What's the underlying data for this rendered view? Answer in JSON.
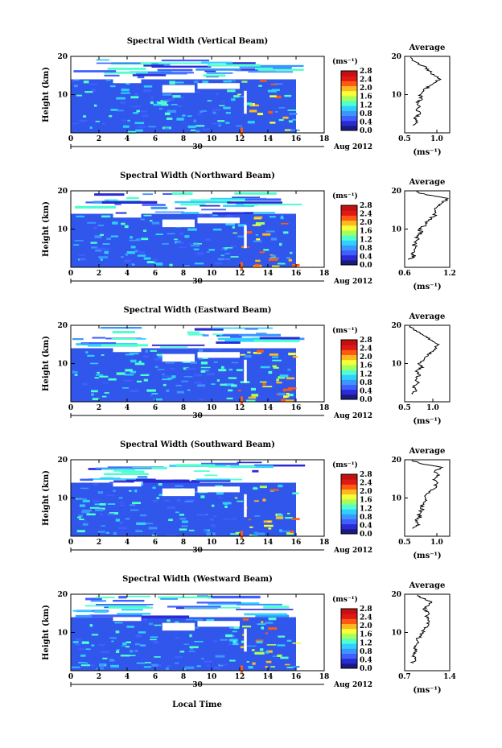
{
  "figure": {
    "x_label": "Local Time",
    "date_label": "Aug 2012",
    "day_label": "30",
    "avg_title": "Average",
    "unit_label": "(ms⁻¹)",
    "y_label": "Height (km)"
  },
  "colorbar": {
    "ticks": [
      "0.0",
      "0.4",
      "0.8",
      "1.2",
      "1.6",
      "2.0",
      "2.4",
      "2.8"
    ],
    "colors": [
      "#1a1a80",
      "#2a2ad6",
      "#3f5fff",
      "#3b97ff",
      "#2fd0ff",
      "#4fffd0",
      "#a8ff5a",
      "#f5ff3a",
      "#ffb820",
      "#ff5a10",
      "#e01818",
      "#c41010"
    ]
  },
  "chart_data": [
    {
      "type": "heatmap",
      "title": "Spectral Width (Vertical Beam)",
      "x_ticks": [
        "0",
        "2",
        "4",
        "6",
        "8",
        "10",
        "12",
        "14",
        "16",
        "18"
      ],
      "xlim": [
        0,
        18
      ],
      "ylim": [
        0,
        20
      ],
      "y_ticks": [
        "10",
        "20"
      ],
      "avg": {
        "xlim": [
          0.5,
          1.2
        ],
        "x_ticks": [
          "0.5",
          "1.0"
        ],
        "profile": [
          [
            2,
            0.62
          ],
          [
            3,
            0.7
          ],
          [
            4,
            0.66
          ],
          [
            5,
            0.74
          ],
          [
            6,
            0.68
          ],
          [
            7,
            0.72
          ],
          [
            8,
            0.7
          ],
          [
            9,
            0.76
          ],
          [
            10,
            0.74
          ],
          [
            11,
            0.8
          ],
          [
            12,
            0.86
          ],
          [
            13,
            0.95
          ],
          [
            14,
            1.05
          ],
          [
            15,
            0.96
          ],
          [
            16,
            0.9
          ],
          [
            17,
            0.84
          ],
          [
            18,
            0.72
          ],
          [
            19,
            0.62
          ],
          [
            20,
            0.58
          ]
        ]
      }
    },
    {
      "type": "heatmap",
      "title": "Spectral Width (Northward Beam)",
      "x_ticks": [
        "0",
        "2",
        "4",
        "6",
        "8",
        "10",
        "12",
        "14",
        "16",
        "18"
      ],
      "xlim": [
        0,
        18
      ],
      "ylim": [
        0,
        20
      ],
      "y_ticks": [
        "10",
        "20"
      ],
      "avg": {
        "xlim": [
          0.6,
          1.2
        ],
        "x_ticks": [
          "0.6",
          "1.2"
        ],
        "profile": [
          [
            2,
            0.66
          ],
          [
            3,
            0.72
          ],
          [
            4,
            0.7
          ],
          [
            5,
            0.76
          ],
          [
            6,
            0.72
          ],
          [
            7,
            0.78
          ],
          [
            8,
            0.76
          ],
          [
            9,
            0.82
          ],
          [
            10,
            0.8
          ],
          [
            11,
            0.88
          ],
          [
            12,
            0.9
          ],
          [
            13,
            0.96
          ],
          [
            14,
            1.02
          ],
          [
            15,
            0.98
          ],
          [
            16,
            1.04
          ],
          [
            17,
            1.1
          ],
          [
            18,
            1.18
          ],
          [
            19,
            0.9
          ],
          [
            20,
            0.7
          ]
        ]
      }
    },
    {
      "type": "heatmap",
      "title": "Spectral Width (Eastward Beam)",
      "x_ticks": [
        "0",
        "2",
        "4",
        "6",
        "8",
        "10",
        "12",
        "14",
        "16",
        "18"
      ],
      "xlim": [
        0,
        18
      ],
      "ylim": [
        0,
        20
      ],
      "y_ticks": [
        "10",
        "20"
      ],
      "avg": {
        "xlim": [
          0.5,
          1.3
        ],
        "x_ticks": [
          "0.5",
          "1.0"
        ],
        "profile": [
          [
            2,
            0.62
          ],
          [
            3,
            0.7
          ],
          [
            4,
            0.66
          ],
          [
            5,
            0.74
          ],
          [
            6,
            0.7
          ],
          [
            7,
            0.76
          ],
          [
            8,
            0.72
          ],
          [
            9,
            0.8
          ],
          [
            10,
            0.76
          ],
          [
            11,
            0.84
          ],
          [
            12,
            0.9
          ],
          [
            13,
            0.98
          ],
          [
            14,
            1.04
          ],
          [
            15,
            1.1
          ],
          [
            16,
            0.96
          ],
          [
            17,
            0.88
          ],
          [
            18,
            0.76
          ],
          [
            19,
            0.64
          ],
          [
            20,
            0.6
          ]
        ]
      }
    },
    {
      "type": "heatmap",
      "title": "Spectral Width (Southward Beam)",
      "x_ticks": [
        "0",
        "2",
        "4",
        "6",
        "8",
        "10",
        "12",
        "14",
        "16",
        "18"
      ],
      "xlim": [
        0,
        18
      ],
      "ylim": [
        0,
        20
      ],
      "y_ticks": [
        "10",
        "20"
      ],
      "avg": {
        "xlim": [
          0.5,
          1.2
        ],
        "x_ticks": [
          "0.5",
          "1.0"
        ],
        "profile": [
          [
            2,
            0.64
          ],
          [
            3,
            0.7
          ],
          [
            4,
            0.68
          ],
          [
            5,
            0.74
          ],
          [
            6,
            0.72
          ],
          [
            7,
            0.78
          ],
          [
            8,
            0.76
          ],
          [
            9,
            0.82
          ],
          [
            10,
            0.8
          ],
          [
            11,
            0.86
          ],
          [
            12,
            0.92
          ],
          [
            13,
            0.98
          ],
          [
            14,
            1.0
          ],
          [
            15,
            0.96
          ],
          [
            16,
            1.02
          ],
          [
            17,
            0.96
          ],
          [
            18,
            1.1
          ],
          [
            19,
            0.72
          ],
          [
            20,
            0.62
          ]
        ]
      }
    },
    {
      "type": "heatmap",
      "title": "Spectral Width (Westward Beam)",
      "x_ticks": [
        "0",
        "2",
        "4",
        "6",
        "8",
        "10",
        "12",
        "14",
        "16",
        "18"
      ],
      "xlim": [
        0,
        18
      ],
      "ylim": [
        0,
        20
      ],
      "y_ticks": [
        "10",
        "20"
      ],
      "avg": {
        "xlim": [
          0.7,
          1.4
        ],
        "x_ticks": [
          "0.7",
          "1.4"
        ],
        "profile": [
          [
            2,
            0.82
          ],
          [
            3,
            0.86
          ],
          [
            4,
            0.84
          ],
          [
            5,
            0.88
          ],
          [
            6,
            0.86
          ],
          [
            7,
            0.9
          ],
          [
            8,
            0.88
          ],
          [
            9,
            0.94
          ],
          [
            10,
            0.98
          ],
          [
            11,
            1.02
          ],
          [
            12,
            1.06
          ],
          [
            13,
            1.1
          ],
          [
            14,
            1.04
          ],
          [
            15,
            1.08
          ],
          [
            16,
            1.0
          ],
          [
            17,
            1.06
          ],
          [
            18,
            1.12
          ],
          [
            19,
            0.96
          ],
          [
            20,
            0.9
          ]
        ]
      }
    }
  ]
}
